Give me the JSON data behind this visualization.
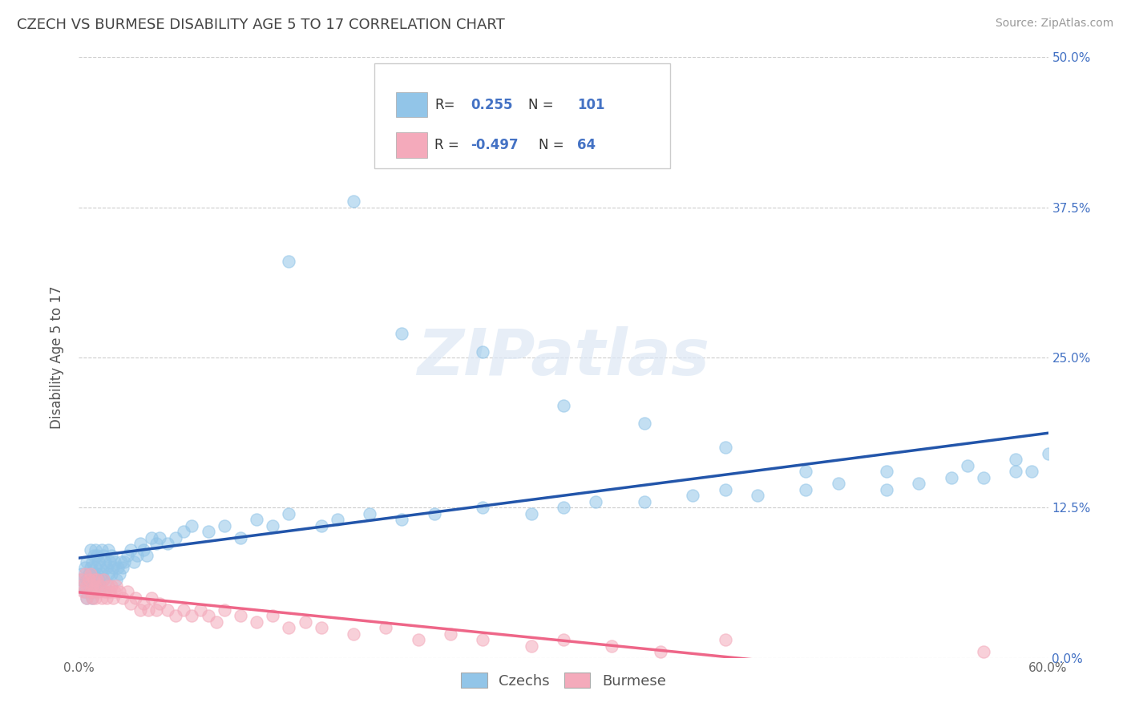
{
  "title": "CZECH VS BURMESE DISABILITY AGE 5 TO 17 CORRELATION CHART",
  "source": "Source: ZipAtlas.com",
  "ylabel": "Disability Age 5 to 17",
  "xlim": [
    0.0,
    0.6
  ],
  "ylim": [
    0.0,
    0.5
  ],
  "xtick_positions": [
    0.0,
    0.6
  ],
  "xtick_labels": [
    "0.0%",
    "60.0%"
  ],
  "ytick_positions": [
    0.0,
    0.125,
    0.25,
    0.375,
    0.5
  ],
  "ytick_labels_right": [
    "0.0%",
    "12.5%",
    "25.0%",
    "37.5%",
    "50.0%"
  ],
  "czech_color": "#92C5E8",
  "burmese_color": "#F4AABB",
  "czech_line_color": "#2255AA",
  "burmese_line_color": "#EE6688",
  "czech_R": 0.255,
  "czech_N": 101,
  "burmese_R": -0.497,
  "burmese_N": 64,
  "background_color": "#ffffff",
  "grid_color": "#cccccc",
  "title_color": "#444444",
  "czech_scatter_x": [
    0.001,
    0.002,
    0.003,
    0.004,
    0.004,
    0.005,
    0.005,
    0.005,
    0.006,
    0.006,
    0.007,
    0.007,
    0.007,
    0.008,
    0.008,
    0.008,
    0.009,
    0.009,
    0.009,
    0.01,
    0.01,
    0.01,
    0.011,
    0.011,
    0.012,
    0.012,
    0.013,
    0.013,
    0.014,
    0.014,
    0.015,
    0.015,
    0.016,
    0.016,
    0.017,
    0.018,
    0.018,
    0.019,
    0.02,
    0.02,
    0.021,
    0.022,
    0.023,
    0.024,
    0.025,
    0.026,
    0.027,
    0.028,
    0.03,
    0.032,
    0.034,
    0.036,
    0.038,
    0.04,
    0.042,
    0.045,
    0.048,
    0.05,
    0.055,
    0.06,
    0.065,
    0.07,
    0.08,
    0.09,
    0.1,
    0.11,
    0.12,
    0.13,
    0.15,
    0.16,
    0.18,
    0.2,
    0.22,
    0.25,
    0.28,
    0.3,
    0.32,
    0.35,
    0.38,
    0.4,
    0.42,
    0.45,
    0.47,
    0.5,
    0.52,
    0.54,
    0.56,
    0.58,
    0.59,
    0.17,
    0.2,
    0.13,
    0.25,
    0.3,
    0.35,
    0.4,
    0.45,
    0.5,
    0.55,
    0.58,
    0.6
  ],
  "czech_scatter_y": [
    0.065,
    0.07,
    0.06,
    0.075,
    0.055,
    0.08,
    0.065,
    0.05,
    0.07,
    0.06,
    0.09,
    0.075,
    0.055,
    0.08,
    0.065,
    0.05,
    0.085,
    0.07,
    0.055,
    0.09,
    0.075,
    0.06,
    0.085,
    0.07,
    0.08,
    0.065,
    0.075,
    0.06,
    0.09,
    0.07,
    0.085,
    0.065,
    0.08,
    0.06,
    0.075,
    0.09,
    0.07,
    0.08,
    0.085,
    0.07,
    0.075,
    0.08,
    0.065,
    0.075,
    0.07,
    0.08,
    0.075,
    0.08,
    0.085,
    0.09,
    0.08,
    0.085,
    0.095,
    0.09,
    0.085,
    0.1,
    0.095,
    0.1,
    0.095,
    0.1,
    0.105,
    0.11,
    0.105,
    0.11,
    0.1,
    0.115,
    0.11,
    0.12,
    0.11,
    0.115,
    0.12,
    0.115,
    0.12,
    0.125,
    0.12,
    0.125,
    0.13,
    0.13,
    0.135,
    0.14,
    0.135,
    0.14,
    0.145,
    0.14,
    0.145,
    0.15,
    0.15,
    0.155,
    0.155,
    0.38,
    0.27,
    0.33,
    0.255,
    0.21,
    0.195,
    0.175,
    0.155,
    0.155,
    0.16,
    0.165,
    0.17
  ],
  "burmese_scatter_x": [
    0.001,
    0.002,
    0.003,
    0.004,
    0.005,
    0.005,
    0.006,
    0.007,
    0.007,
    0.008,
    0.008,
    0.009,
    0.009,
    0.01,
    0.01,
    0.011,
    0.012,
    0.013,
    0.014,
    0.015,
    0.016,
    0.017,
    0.018,
    0.019,
    0.02,
    0.021,
    0.022,
    0.023,
    0.025,
    0.027,
    0.03,
    0.032,
    0.035,
    0.038,
    0.04,
    0.043,
    0.045,
    0.048,
    0.05,
    0.055,
    0.06,
    0.065,
    0.07,
    0.075,
    0.08,
    0.085,
    0.09,
    0.1,
    0.11,
    0.12,
    0.13,
    0.14,
    0.15,
    0.17,
    0.19,
    0.21,
    0.23,
    0.25,
    0.28,
    0.3,
    0.33,
    0.36,
    0.4,
    0.56
  ],
  "burmese_scatter_y": [
    0.06,
    0.065,
    0.055,
    0.07,
    0.06,
    0.05,
    0.065,
    0.055,
    0.07,
    0.06,
    0.05,
    0.065,
    0.055,
    0.06,
    0.05,
    0.065,
    0.055,
    0.06,
    0.05,
    0.065,
    0.055,
    0.05,
    0.06,
    0.055,
    0.06,
    0.05,
    0.055,
    0.06,
    0.055,
    0.05,
    0.055,
    0.045,
    0.05,
    0.04,
    0.045,
    0.04,
    0.05,
    0.04,
    0.045,
    0.04,
    0.035,
    0.04,
    0.035,
    0.04,
    0.035,
    0.03,
    0.04,
    0.035,
    0.03,
    0.035,
    0.025,
    0.03,
    0.025,
    0.02,
    0.025,
    0.015,
    0.02,
    0.015,
    0.01,
    0.015,
    0.01,
    0.005,
    0.015,
    0.005
  ],
  "watermark_text": "ZIPatlas",
  "legend_label_czech": "Czechs",
  "legend_label_burmese": "Burmese"
}
